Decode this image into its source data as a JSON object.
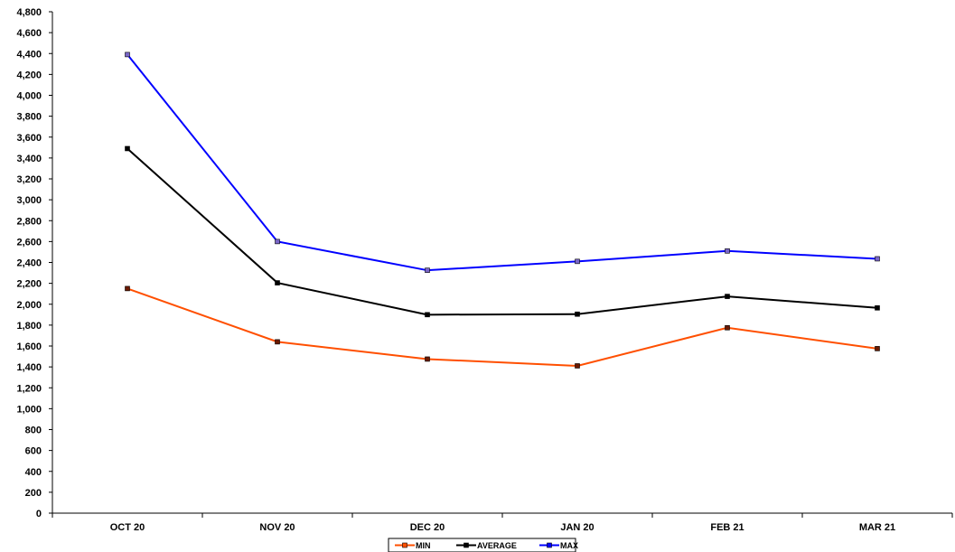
{
  "chart_data": {
    "type": "line",
    "categories": [
      "OCT 20",
      "NOV 20",
      "DEC 20",
      "JAN 20",
      "FEB 21",
      "MAR 21"
    ],
    "series": [
      {
        "name": "MIN",
        "color": "#ff4f00",
        "values": [
          2150,
          1640,
          1475,
          1410,
          1775,
          1575
        ]
      },
      {
        "name": "AVERAGE",
        "color": "#000000",
        "values": [
          3490,
          2205,
          1900,
          1905,
          2075,
          1965
        ]
      },
      {
        "name": "MAX",
        "color": "#0000ff",
        "values": [
          4390,
          2600,
          2325,
          2410,
          2510,
          2435
        ]
      }
    ],
    "ylim": [
      0,
      4800
    ],
    "yticks": [
      "0",
      "200",
      "400",
      "600",
      "800",
      "1,000",
      "1,200",
      "1,400",
      "1,600",
      "1,800",
      "2,000",
      "2,200",
      "2,400",
      "2,600",
      "2,800",
      "3,000",
      "3,200",
      "3,400",
      "3,600",
      "3,800",
      "4,000",
      "4,200",
      "4,400",
      "4,600",
      "4,800"
    ],
    "grid": false,
    "legend_position": "bottom"
  }
}
